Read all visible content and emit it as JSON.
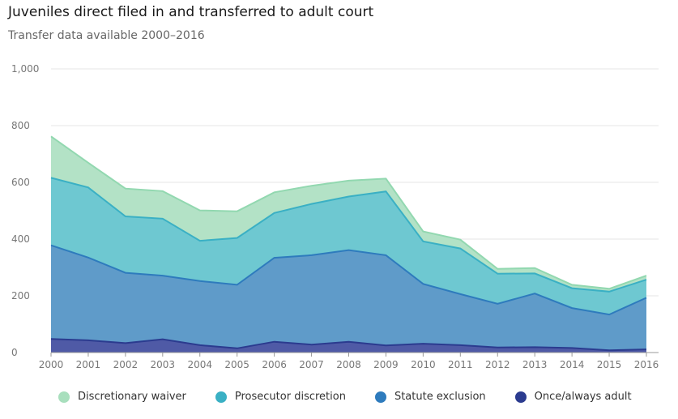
{
  "title": "Juveniles direct filed in and transferred to adult court",
  "subtitle": "Transfer data available 2000–2016",
  "chart_data": {
    "type": "area",
    "stacked": true,
    "x": [
      2000,
      2001,
      2002,
      2003,
      2004,
      2005,
      2006,
      2007,
      2008,
      2009,
      2010,
      2011,
      2012,
      2013,
      2014,
      2015,
      2016
    ],
    "ylim": [
      0,
      1000
    ],
    "yticks": [
      "0",
      "200",
      "400",
      "600",
      "800",
      "1,000"
    ],
    "ytick_values": [
      0,
      200,
      400,
      600,
      800,
      1000
    ],
    "grid": true,
    "legend_position": "bottom",
    "series": [
      {
        "name": "Once/always adult",
        "color": "#2b3b8f",
        "fill": "#4f5aa6",
        "values": [
          48,
          43,
          33,
          47,
          26,
          15,
          38,
          28,
          38,
          25,
          31,
          26,
          18,
          19,
          16,
          8,
          11
        ]
      },
      {
        "name": "Statute exclusion",
        "color": "#2e7bbd",
        "fill": "#5f9bc9",
        "values": [
          330,
          292,
          248,
          224,
          226,
          224,
          296,
          315,
          323,
          318,
          211,
          180,
          154,
          189,
          141,
          126,
          182
        ]
      },
      {
        "name": "Prosecutor discretion",
        "color": "#3ab0c4",
        "fill": "#6ec8d1",
        "values": [
          238,
          247,
          199,
          201,
          142,
          165,
          158,
          181,
          189,
          225,
          150,
          161,
          106,
          71,
          70,
          81,
          64
        ]
      },
      {
        "name": "Discretionary waiver",
        "color": "#92d8b0",
        "fill": "#b3e2c6",
        "values": [
          146,
          87,
          98,
          97,
          107,
          94,
          73,
          64,
          56,
          45,
          35,
          31,
          17,
          19,
          12,
          10,
          14
        ]
      }
    ],
    "legend_order": [
      "Discretionary waiver",
      "Prosecutor discretion",
      "Statute exclusion",
      "Once/always adult"
    ]
  }
}
